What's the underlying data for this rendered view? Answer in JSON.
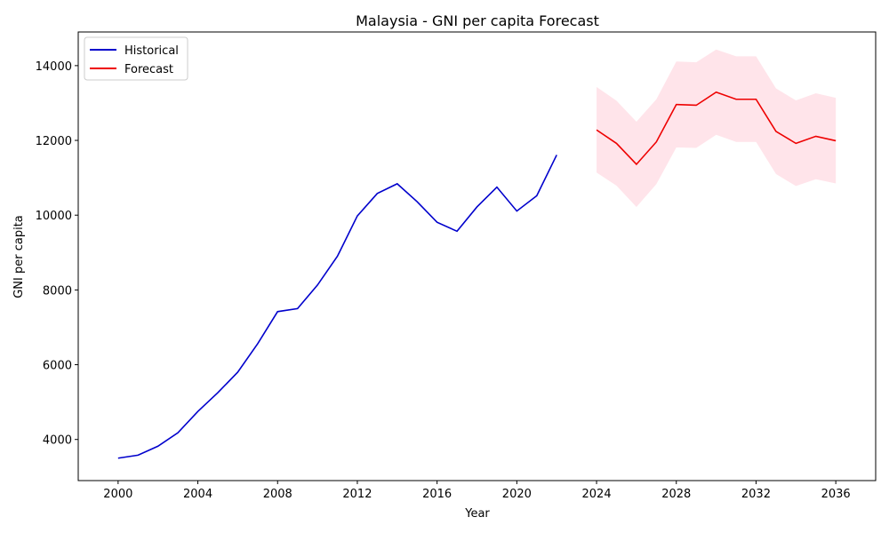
{
  "chart_data": {
    "type": "line",
    "title": "Malaysia - GNI per capita Forecast",
    "xlabel": "Year",
    "ylabel": "GNI per capita",
    "xlim": [
      1998,
      2038
    ],
    "ylim": [
      2900,
      14900
    ],
    "xticks": [
      2000,
      2004,
      2008,
      2012,
      2016,
      2020,
      2024,
      2028,
      2032,
      2036
    ],
    "yticks": [
      4000,
      6000,
      8000,
      10000,
      12000,
      14000
    ],
    "grid": false,
    "legend": {
      "position": "top-left",
      "entries": [
        "Historical",
        "Forecast"
      ]
    },
    "colors": {
      "historical": "#0000cc",
      "forecast": "#ee0000",
      "band": "#ffe4ea"
    },
    "series": [
      {
        "name": "Historical",
        "x": [
          2000,
          2001,
          2002,
          2003,
          2004,
          2005,
          2006,
          2007,
          2008,
          2009,
          2010,
          2011,
          2012,
          2013,
          2014,
          2015,
          2016,
          2017,
          2018,
          2019,
          2020,
          2021,
          2022
        ],
        "values": [
          3500,
          3580,
          3820,
          4180,
          4750,
          5250,
          5800,
          6560,
          7420,
          7500,
          8130,
          8900,
          9980,
          10580,
          10840,
          10360,
          9810,
          9570,
          10220,
          10750,
          10110,
          10520,
          11610
        ]
      },
      {
        "name": "Forecast",
        "x": [
          2024,
          2025,
          2026,
          2027,
          2028,
          2029,
          2030,
          2031,
          2032,
          2033,
          2034,
          2035,
          2036
        ],
        "values": [
          12280,
          11920,
          11360,
          11960,
          12960,
          12940,
          13290,
          13100,
          13100,
          12240,
          11920,
          12110,
          11990
        ],
        "lower": [
          11140,
          10790,
          10220,
          10830,
          11810,
          11800,
          12150,
          11960,
          11960,
          11100,
          10780,
          10960,
          10850
        ],
        "upper": [
          13430,
          13060,
          12500,
          13100,
          14110,
          14090,
          14430,
          14250,
          14250,
          13390,
          13070,
          13260,
          13140
        ]
      }
    ]
  }
}
